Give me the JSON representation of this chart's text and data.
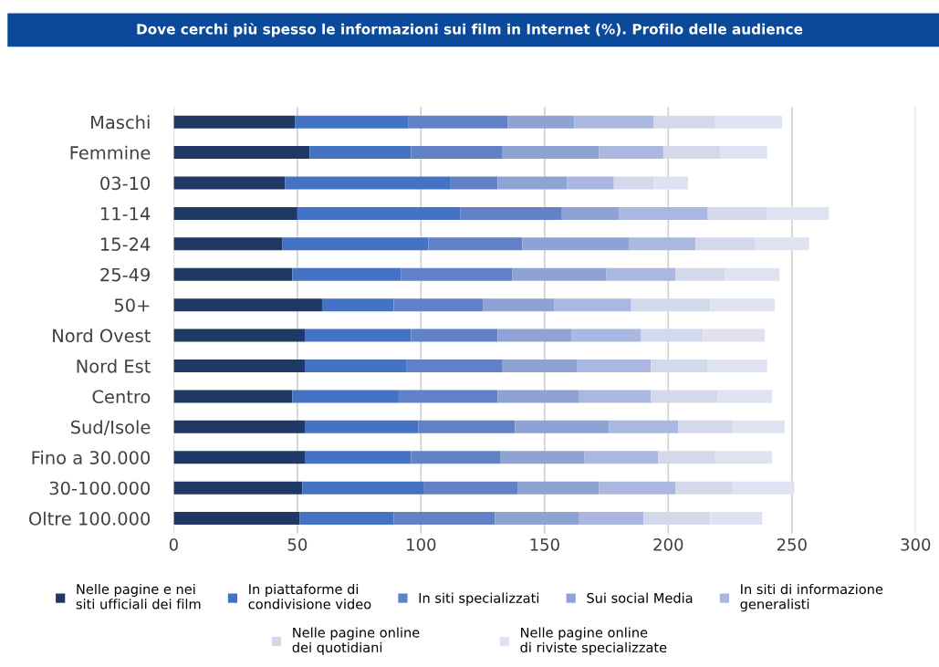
{
  "chart_data": {
    "type": "bar",
    "orientation": "horizontal",
    "stacked": true,
    "title": "Dove cerchi più spesso le informazioni sui film in Internet (%). Profilo delle audience",
    "categories": [
      "Maschi",
      "Femmine",
      "03-10",
      "11-14",
      "15-24",
      "25-49",
      "50+",
      "Nord Ovest",
      "Nord Est",
      "Centro",
      "Sud/Isole",
      "Fino a 30.000",
      "30-100.000",
      "Oltre 100.000"
    ],
    "series": [
      {
        "name": "Nelle pagine e nei\nsiti ufficiali dei film",
        "color": "#1f3864",
        "values": [
          49,
          55,
          45,
          50,
          44,
          48,
          60,
          53,
          53,
          48,
          53,
          53,
          52,
          51
        ]
      },
      {
        "name": "In piattaforme di\ncondivisione video",
        "color": "#4472c4",
        "values": [
          46,
          41,
          67,
          66,
          59,
          44,
          29,
          43,
          41,
          43,
          46,
          43,
          49,
          38
        ]
      },
      {
        "name": "In siti specializzati",
        "color": "#6282c8",
        "values": [
          40,
          37,
          19,
          41,
          38,
          45,
          36,
          35,
          39,
          40,
          39,
          36,
          38,
          41
        ]
      },
      {
        "name": "Sui social Media",
        "color": "#8fa2d4",
        "values": [
          27,
          39,
          28,
          23,
          43,
          38,
          29,
          30,
          30,
          33,
          38,
          34,
          33,
          34
        ]
      },
      {
        "name": "In siti di informazione\ngeneralisti",
        "color": "#aab7e0",
        "values": [
          32,
          26,
          19,
          36,
          27,
          28,
          31,
          28,
          30,
          29,
          28,
          30,
          31,
          26
        ]
      },
      {
        "name": "Nelle pagine online\ndei quotidiani",
        "color": "#d3d9ea",
        "values": [
          25,
          23,
          16,
          24,
          24,
          20,
          32,
          25,
          23,
          27,
          22,
          23,
          23,
          27
        ]
      },
      {
        "name": "Nelle pagine online\ndi riviste specializzate",
        "color": "#dfe2f0",
        "values": [
          27,
          19,
          14,
          25,
          22,
          22,
          26,
          25,
          24,
          22,
          21,
          23,
          25,
          21
        ]
      }
    ],
    "xlim": [
      0,
      300
    ],
    "xticks": [
      0,
      50,
      100,
      150,
      200,
      250,
      300
    ],
    "grid": "x",
    "legend": "bottom"
  }
}
